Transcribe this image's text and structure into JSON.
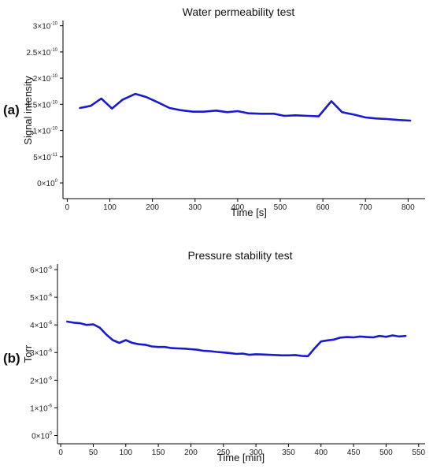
{
  "figure": {
    "colors": {
      "series": "#1a1acc",
      "axis": "#000000",
      "text": "#111111"
    }
  },
  "chart_data": [
    {
      "type": "line",
      "panel_label": "(a)",
      "title": "Water permeability test",
      "xlabel": "Time [s]",
      "ylabel": "Signal intensity",
      "xlim": [
        -10,
        840
      ],
      "ylim": [
        -3e-11,
        3.1e-10
      ],
      "x_ticks": [
        0,
        100,
        200,
        300,
        400,
        500,
        600,
        700,
        800
      ],
      "x_tick_labels": [
        "0",
        "100",
        "200",
        "300",
        "400",
        "500",
        "600",
        "700",
        "800"
      ],
      "y_ticks": [
        0,
        5e-11,
        1e-10,
        1.5e-10,
        2e-10,
        2.5e-10,
        3e-10
      ],
      "y_tick_labels": [
        {
          "mantissa": "0",
          "exp": "0"
        },
        {
          "mantissa": "5",
          "exp": "-11"
        },
        {
          "mantissa": "1",
          "exp": "-10"
        },
        {
          "mantissa": "1.5",
          "exp": "-10"
        },
        {
          "mantissa": "2",
          "exp": "-10"
        },
        {
          "mantissa": "2.5",
          "exp": "-10"
        },
        {
          "mantissa": "3",
          "exp": "-10"
        }
      ],
      "grid": false,
      "series": [
        {
          "x": [
            30,
            55,
            80,
            105,
            130,
            160,
            185,
            215,
            240,
            265,
            295,
            320,
            350,
            375,
            400,
            425,
            455,
            485,
            510,
            535,
            565,
            590,
            620,
            645,
            675,
            700,
            725,
            750,
            780,
            805
          ],
          "y": [
            1.43e-10,
            1.47e-10,
            1.61e-10,
            1.42e-10,
            1.59e-10,
            1.7e-10,
            1.64e-10,
            1.53e-10,
            1.43e-10,
            1.39e-10,
            1.36e-10,
            1.36e-10,
            1.38e-10,
            1.35e-10,
            1.37e-10,
            1.33e-10,
            1.32e-10,
            1.32e-10,
            1.28e-10,
            1.29e-10,
            1.28e-10,
            1.27e-10,
            1.56e-10,
            1.35e-10,
            1.3e-10,
            1.25e-10,
            1.23e-10,
            1.22e-10,
            1.2e-10,
            1.19e-10
          ]
        }
      ]
    },
    {
      "type": "line",
      "panel_label": "(b)",
      "title": "Pressure stability test",
      "xlabel": "Time [min]",
      "ylabel": "Torr",
      "xlim": [
        -5,
        560
      ],
      "ylim": [
        -3e-07,
        6.2e-06
      ],
      "x_ticks": [
        0,
        50,
        100,
        150,
        200,
        250,
        300,
        350,
        400,
        450,
        500,
        550
      ],
      "x_tick_labels": [
        "0",
        "50",
        "100",
        "150",
        "200",
        "250",
        "300",
        "350",
        "400",
        "450",
        "500",
        "550"
      ],
      "y_ticks": [
        0,
        1e-06,
        2e-06,
        3e-06,
        4e-06,
        5e-06,
        6e-06
      ],
      "y_tick_labels": [
        {
          "mantissa": "0",
          "exp": "0"
        },
        {
          "mantissa": "1",
          "exp": "-6"
        },
        {
          "mantissa": "2",
          "exp": "-6"
        },
        {
          "mantissa": "3",
          "exp": "-6"
        },
        {
          "mantissa": "4",
          "exp": "-6"
        },
        {
          "mantissa": "5",
          "exp": "-6"
        },
        {
          "mantissa": "6",
          "exp": "-6"
        }
      ],
      "grid": false,
      "series": [
        {
          "x": [
            10,
            20,
            30,
            40,
            50,
            60,
            70,
            80,
            90,
            100,
            110,
            120,
            130,
            140,
            150,
            160,
            170,
            180,
            190,
            200,
            210,
            220,
            230,
            240,
            250,
            260,
            270,
            280,
            290,
            300,
            310,
            320,
            330,
            340,
            350,
            360,
            370,
            380,
            390,
            400,
            410,
            420,
            430,
            440,
            450,
            460,
            470,
            480,
            490,
            500,
            510,
            520,
            530
          ],
          "y": [
            4.12e-06,
            4.08e-06,
            4.06e-06,
            4e-06,
            4.02e-06,
            3.9e-06,
            3.65e-06,
            3.45e-06,
            3.35e-06,
            3.45e-06,
            3.35e-06,
            3.3e-06,
            3.28e-06,
            3.22e-06,
            3.2e-06,
            3.2e-06,
            3.16e-06,
            3.15e-06,
            3.14e-06,
            3.12e-06,
            3.1e-06,
            3.06e-06,
            3.05e-06,
            3.02e-06,
            3e-06,
            2.98e-06,
            2.95e-06,
            2.96e-06,
            2.92e-06,
            2.94e-06,
            2.93e-06,
            2.92e-06,
            2.91e-06,
            2.9e-06,
            2.9e-06,
            2.91e-06,
            2.88e-06,
            2.87e-06,
            3.15e-06,
            3.4e-06,
            3.44e-06,
            3.47e-06,
            3.54e-06,
            3.56e-06,
            3.55e-06,
            3.58e-06,
            3.56e-06,
            3.55e-06,
            3.6e-06,
            3.57e-06,
            3.62e-06,
            3.58e-06,
            3.6e-06
          ]
        }
      ]
    }
  ]
}
